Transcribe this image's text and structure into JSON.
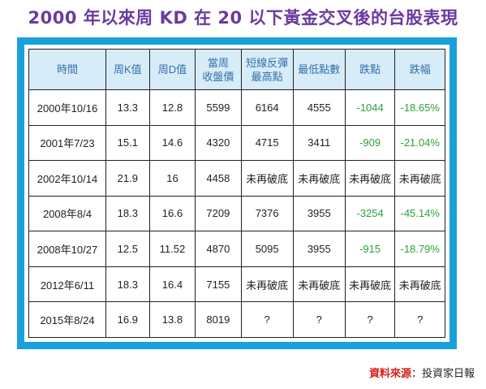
{
  "title": "2000 年以來周 KD 在 20 以下黃金交叉後的台股表現",
  "headers": [
    "時間",
    "周K值",
    "周D值",
    "當周\n收盤價",
    "短線反彈\n最高點",
    "最低點數",
    "跌點",
    "跌幅"
  ],
  "rows": [
    [
      "2000年10/16",
      "13.3",
      "12.8",
      "5599",
      "6164",
      "4555",
      "-1044",
      "-18.65%"
    ],
    [
      "2001年7/23",
      "15.1",
      "14.6",
      "4320",
      "4715",
      "3411",
      "-909",
      "-21.04%"
    ],
    [
      "2002年10/14",
      "21.9",
      "16",
      "4458",
      "未再破底",
      "未再破底",
      "未再破底",
      "未再破底"
    ],
    [
      "2008年8/4",
      "18.3",
      "16.6",
      "7209",
      "7376",
      "3955",
      "-3254",
      "-45.14%"
    ],
    [
      "2008年10/27",
      "12.5",
      "11.52",
      "4870",
      "5095",
      "3955",
      "-915",
      "-18.79%"
    ],
    [
      "2012年6/11",
      "18.3",
      "16.4",
      "7155",
      "未再破底",
      "未再破底",
      "未再破底",
      "未再破底"
    ],
    [
      "2015年8/24",
      "16.9",
      "13.8",
      "8019",
      "?",
      "?",
      "?",
      "?"
    ]
  ],
  "source": {
    "label": "資料來源",
    "separator": "：",
    "value": "投資家日報"
  },
  "colors": {
    "title": "#6b3aa0",
    "frame": "#1aa0dd",
    "header_bg": "#d6ecf8",
    "header_text": "#3470a8",
    "negative": "#2fa03c",
    "source_label": "#d8201a"
  }
}
